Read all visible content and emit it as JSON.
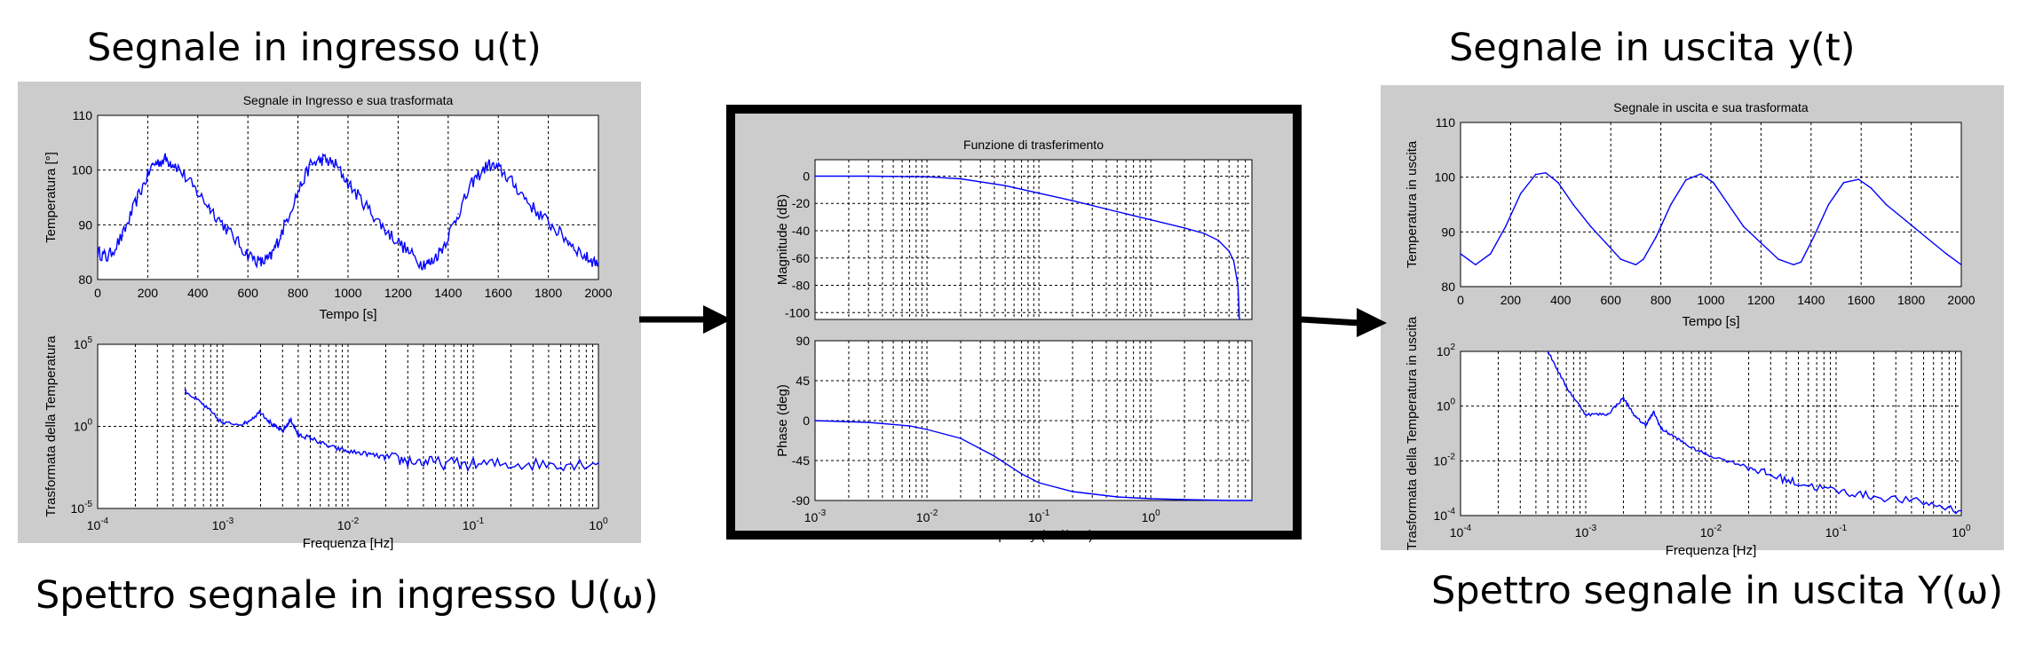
{
  "headings": {
    "input_signal": "Segnale in ingresso u(t)",
    "output_signal": "Segnale in uscita y(t)",
    "input_spectrum": "Spettro segnale in ingresso U(ω)",
    "output_spectrum": "Spettro segnale in uscita Y(ω)"
  },
  "colors": {
    "line": "#0000ff",
    "panel_bg": "#cccccc",
    "grid": "#000000"
  },
  "chart_data": [
    {
      "id": "input-time",
      "type": "line",
      "title": "Segnale in Ingresso e sua trasformata",
      "xlabel": "Tempo [s]",
      "ylabel": "Temperatura [°]",
      "xlim": [
        0,
        2000
      ],
      "ylim": [
        80,
        110
      ],
      "xticks": [
        "0",
        "200",
        "400",
        "600",
        "800",
        "1000",
        "1200",
        "1400",
        "1600",
        "1800",
        "2000"
      ],
      "yticks": [
        "80",
        "90",
        "100",
        "110"
      ],
      "grid": true,
      "x": [
        0,
        40,
        100,
        160,
        220,
        270,
        310,
        380,
        450,
        520,
        590,
        650,
        690,
        730,
        790,
        850,
        900,
        950,
        1010,
        1080,
        1150,
        1220,
        1290,
        1330,
        1380,
        1440,
        1500,
        1560,
        1610,
        1670,
        1740,
        1810,
        1880,
        1950,
        2000
      ],
      "y": [
        85,
        84,
        88,
        95,
        101,
        102,
        101,
        97,
        93,
        89,
        85,
        83,
        84,
        88,
        95,
        101,
        102,
        101,
        97,
        93,
        89,
        86,
        83,
        83,
        86,
        92,
        98,
        101,
        100,
        97,
        93,
        90,
        87,
        84,
        83
      ],
      "noise": 1.2
    },
    {
      "id": "input-spectrum",
      "type": "line",
      "xscale": "log",
      "yscale": "log",
      "xlabel": "Frequenza [Hz]",
      "ylabel": "Trasformata della Temperatura",
      "xlim": [
        0.0001,
        1
      ],
      "ylim": [
        1e-05,
        100000
      ],
      "xtick_bases": [
        "10",
        "10",
        "10",
        "10",
        "10"
      ],
      "xtick_exps": [
        "-4",
        "-3",
        "-2",
        "-1",
        "0"
      ],
      "ytick_bases": [
        "10",
        "10",
        "10"
      ],
      "ytick_exps": [
        "-5",
        "0",
        "5"
      ],
      "grid": true,
      "x": [
        0.0005,
        0.0007,
        0.001,
        0.0015,
        0.002,
        0.0025,
        0.003,
        0.0035,
        0.004,
        0.005,
        0.007,
        0.01,
        0.015,
        0.02,
        0.03,
        0.05,
        0.1,
        0.2,
        0.5,
        1
      ],
      "y": [
        150,
        20,
        1.5,
        1.5,
        8,
        1.2,
        0.5,
        2.5,
        0.3,
        0.2,
        0.06,
        0.03,
        0.02,
        0.012,
        0.008,
        0.006,
        0.005,
        0.005,
        0.005,
        0.006
      ],
      "noise": 0.8
    },
    {
      "id": "bode-magnitude",
      "type": "line",
      "title": "Funzione di trasferimento",
      "xscale": "log",
      "ylabel": "Magnitude (dB)",
      "xlim": [
        0.001,
        8
      ],
      "ylim": [
        -105,
        12
      ],
      "yticks": [
        "0",
        "-20",
        "-40",
        "-60",
        "-80",
        "-100"
      ],
      "grid": true,
      "x": [
        0.001,
        0.003,
        0.01,
        0.02,
        0.05,
        0.1,
        0.2,
        0.5,
        1,
        2,
        3,
        4,
        5,
        5.5,
        6,
        6.2
      ],
      "y": [
        0,
        0,
        -0.5,
        -2,
        -7,
        -12.5,
        -18,
        -26,
        -32,
        -38,
        -42,
        -47,
        -55,
        -62,
        -80,
        -105
      ]
    },
    {
      "id": "bode-phase",
      "type": "line",
      "xscale": "log",
      "xlabel": "Frequency  (rad/sec)",
      "ylabel": "Phase (deg)",
      "xlim": [
        0.001,
        8
      ],
      "ylim": [
        -90,
        90
      ],
      "yticks": [
        "90",
        "45",
        "0",
        "-45",
        "-90"
      ],
      "xtick_bases": [
        "10",
        "10",
        "10",
        "10"
      ],
      "xtick_exps": [
        "-3",
        "-2",
        "-1",
        "0"
      ],
      "grid": true,
      "x": [
        0.001,
        0.003,
        0.007,
        0.01,
        0.02,
        0.04,
        0.07,
        0.1,
        0.2,
        0.5,
        1,
        2,
        5,
        8
      ],
      "y": [
        0,
        -2,
        -6,
        -10,
        -20,
        -40,
        -60,
        -70,
        -80,
        -86,
        -88,
        -89,
        -90,
        -90
      ]
    },
    {
      "id": "output-time",
      "type": "line",
      "title": "Segnale in uscita e sua trasformata",
      "xlabel": "Tempo [s]",
      "ylabel": "Temperatura in uscita",
      "xlim": [
        0,
        2000
      ],
      "ylim": [
        80,
        110
      ],
      "xticks": [
        "0",
        "200",
        "400",
        "600",
        "800",
        "1000",
        "1200",
        "1400",
        "1600",
        "1800",
        "2000"
      ],
      "yticks": [
        "80",
        "90",
        "100",
        "110"
      ],
      "grid": true,
      "x": [
        0,
        60,
        120,
        180,
        240,
        300,
        340,
        390,
        450,
        520,
        580,
        640,
        700,
        730,
        780,
        840,
        900,
        960,
        1010,
        1070,
        1130,
        1200,
        1270,
        1330,
        1360,
        1410,
        1470,
        1530,
        1590,
        1640,
        1700,
        1780,
        1860,
        1940,
        2000
      ],
      "y": [
        86,
        84,
        86,
        91,
        97,
        100.5,
        100.8,
        99,
        95,
        91,
        88,
        85,
        84,
        85,
        89,
        95,
        99.5,
        100.6,
        99,
        95,
        91,
        88,
        85,
        84,
        84.5,
        89,
        95,
        99,
        99.6,
        98,
        95,
        92,
        89,
        86,
        84
      ]
    },
    {
      "id": "output-spectrum",
      "type": "line",
      "xscale": "log",
      "yscale": "log",
      "xlabel": "Frequenza [Hz]",
      "ylabel": "Trasformata della Temperatura in uscita",
      "xlim": [
        0.0001,
        1
      ],
      "ylim": [
        0.0001,
        100
      ],
      "xtick_bases": [
        "10",
        "10",
        "10",
        "10",
        "10"
      ],
      "xtick_exps": [
        "-4",
        "-3",
        "-2",
        "-1",
        "0"
      ],
      "ytick_bases": [
        "10",
        "10",
        "10",
        "10"
      ],
      "ytick_exps": [
        "-4",
        "-2",
        "0",
        "2"
      ],
      "grid": true,
      "x": [
        0.0005,
        0.0007,
        0.001,
        0.0015,
        0.002,
        0.0025,
        0.003,
        0.0035,
        0.004,
        0.005,
        0.007,
        0.01,
        0.02,
        0.03,
        0.05,
        0.1,
        0.2,
        0.5,
        1
      ],
      "y": [
        100,
        5,
        0.5,
        0.5,
        2,
        0.4,
        0.2,
        0.6,
        0.15,
        0.08,
        0.03,
        0.015,
        0.006,
        0.003,
        0.0015,
        0.0008,
        0.0005,
        0.0003,
        0.00015
      ],
      "noise": 0.3
    }
  ]
}
